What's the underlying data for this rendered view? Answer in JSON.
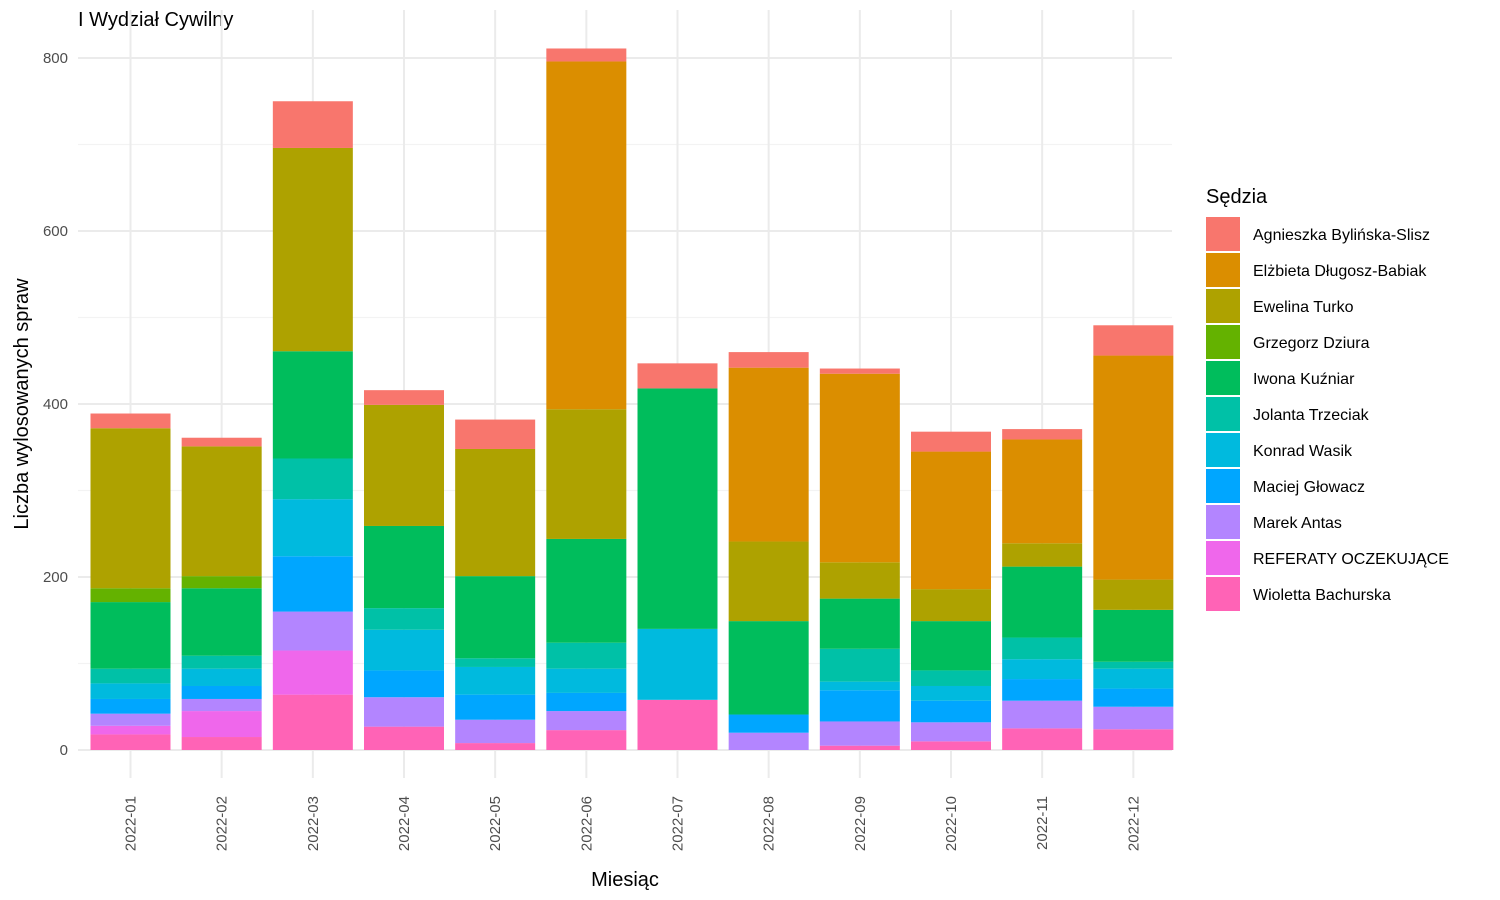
{
  "chart_data": {
    "type": "bar",
    "stacked": true,
    "title": "I Wydział Cywilny",
    "xlabel": "Miesiąc",
    "ylabel": "Liczba wylosowanych spraw",
    "ylim": [
      0,
      820
    ],
    "y_ticks": [
      0,
      200,
      400,
      600,
      800
    ],
    "grid": true,
    "legend_title": "Sędzia",
    "legend_position": "right",
    "categories": [
      "2022-01",
      "2022-02",
      "2022-03",
      "2022-04",
      "2022-05",
      "2022-06",
      "2022-07",
      "2022-08",
      "2022-09",
      "2022-10",
      "2022-11",
      "2022-12"
    ],
    "series": [
      {
        "name": "Agnieszka Bylińska-Slisz",
        "color": "#F8766D",
        "values": [
          17,
          10,
          54,
          17,
          34,
          15,
          29,
          18,
          6,
          23,
          12,
          35
        ]
      },
      {
        "name": "Elżbieta Długosz-Babiak",
        "color": "#DB8E00",
        "values": [
          0,
          0,
          0,
          0,
          0,
          402,
          0,
          201,
          218,
          159,
          120,
          259
        ]
      },
      {
        "name": "Ewelina Turko",
        "color": "#AEA200",
        "values": [
          185,
          150,
          235,
          140,
          147,
          150,
          0,
          92,
          42,
          37,
          27,
          35
        ]
      },
      {
        "name": "Grzegorz Dziura",
        "color": "#64B200",
        "values": [
          16,
          14,
          0,
          0,
          0,
          0,
          0,
          0,
          0,
          0,
          0,
          0
        ]
      },
      {
        "name": "Iwona Kuźniar",
        "color": "#00BD5C",
        "values": [
          77,
          78,
          124,
          95,
          95,
          120,
          278,
          108,
          58,
          57,
          82,
          60
        ]
      },
      {
        "name": "Jolanta Trzeciak",
        "color": "#00C1A7",
        "values": [
          17,
          15,
          47,
          25,
          10,
          30,
          0,
          0,
          38,
          18,
          25,
          8
        ]
      },
      {
        "name": "Konrad Wasik",
        "color": "#00BADE",
        "values": [
          18,
          20,
          66,
          47,
          32,
          28,
          82,
          0,
          10,
          17,
          23,
          23
        ]
      },
      {
        "name": "Maciej Głowacz",
        "color": "#00A6FF",
        "values": [
          17,
          15,
          64,
          31,
          29,
          21,
          0,
          21,
          36,
          25,
          25,
          21
        ]
      },
      {
        "name": "Marek Antas",
        "color": "#B385FF",
        "values": [
          14,
          14,
          45,
          34,
          27,
          22,
          0,
          20,
          28,
          22,
          32,
          26
        ]
      },
      {
        "name": "REFERATY OCZEKUJĄCE",
        "color": "#EF67EB",
        "values": [
          10,
          30,
          51,
          0,
          0,
          0,
          0,
          0,
          0,
          0,
          0,
          0
        ]
      },
      {
        "name": "Wioletta Bachurska",
        "color": "#FF63B6",
        "values": [
          18,
          15,
          64,
          27,
          8,
          23,
          58,
          0,
          5,
          10,
          25,
          24
        ]
      }
    ]
  }
}
